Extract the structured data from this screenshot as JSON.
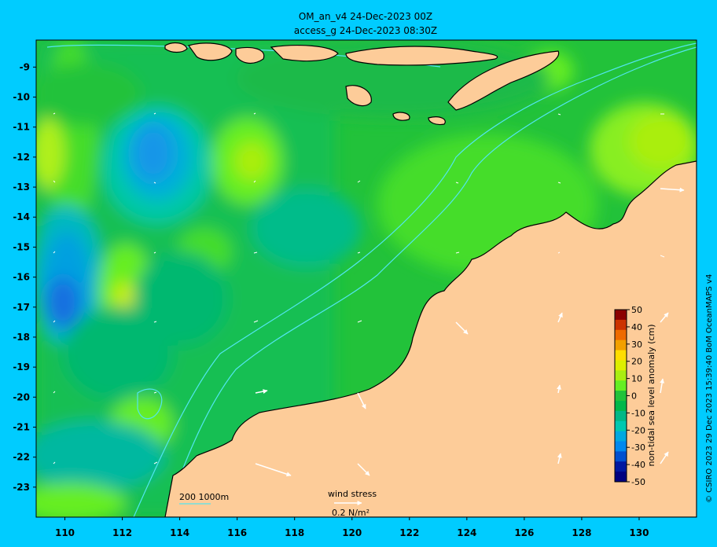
{
  "title": {
    "line1": "OM_an_v4  24-Dec-2023 00Z",
    "line2": "access_g 24-Dec-2023 08:30Z"
  },
  "map": {
    "lon_ticks": [
      110,
      112,
      114,
      116,
      118,
      120,
      122,
      124,
      126,
      128,
      130
    ],
    "lat_ticks": [
      -9,
      -10,
      -11,
      -12,
      -13,
      -14,
      -15,
      -16,
      -17,
      -18,
      -19,
      -20,
      -21,
      -22,
      -23
    ],
    "lon_range": [
      109,
      132
    ],
    "lat_range": [
      -8.1,
      -24.0
    ],
    "colors": {
      "ocean_bg": "#22c23a",
      "land": "#fdcc99",
      "frame": "#00ccff",
      "contour": "#52e6f0",
      "coast": "#000000"
    }
  },
  "isobath_legend": {
    "label": "200  1000m"
  },
  "wind_legend": {
    "title": "wind stress",
    "unit": "0.2 N/m²"
  },
  "colorbar": {
    "label": "non-tidal sea level anomaly (cm)",
    "ticks": [
      50,
      40,
      30,
      20,
      10,
      0,
      -10,
      -20,
      -30,
      -40,
      -50
    ],
    "colors": [
      "#8b0000",
      "#cc3300",
      "#ee6a00",
      "#f2a000",
      "#ffdd00",
      "#ddee00",
      "#aaee11",
      "#66ee22",
      "#22c23a",
      "#00b84a",
      "#00b886",
      "#00c8b0",
      "#00a8e0",
      "#0088ee",
      "#0050d0",
      "#0018a0",
      "#000080"
    ]
  },
  "credit": "© CSIRO 2023   29 Dec 2023 15:39:40 BoM OceanMAPS v4"
}
